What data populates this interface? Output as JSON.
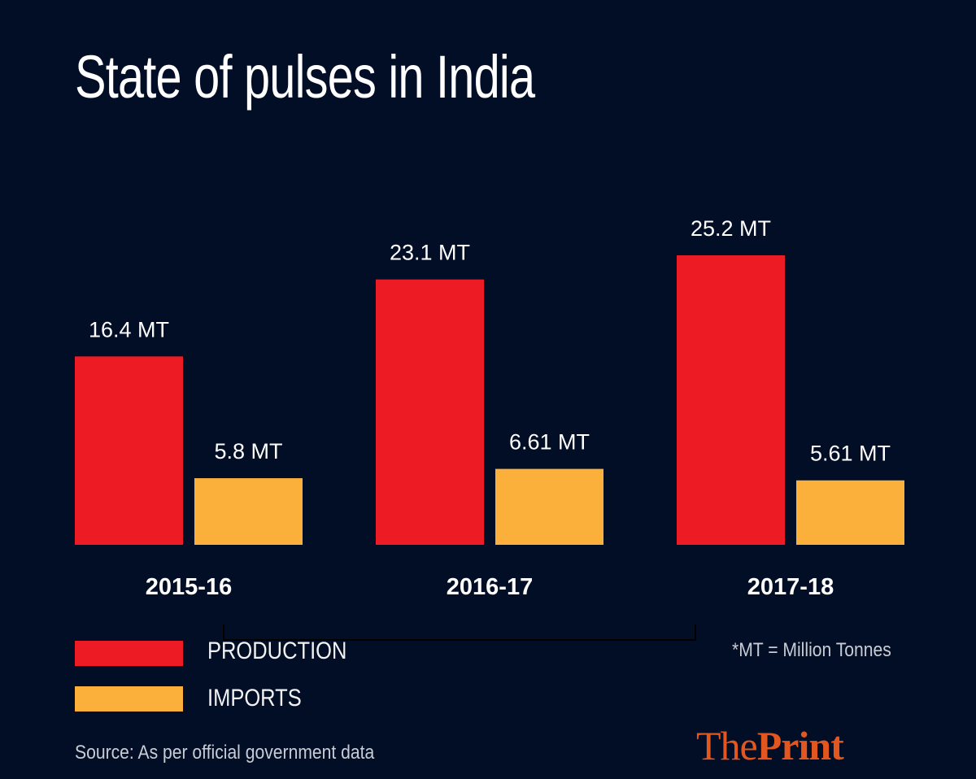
{
  "chart_data": {
    "type": "bar",
    "title": "State of pulses in India",
    "categories": [
      "2015-16",
      "2016-17",
      "2017-18"
    ],
    "series": [
      {
        "name": "PRODUCTION",
        "values": [
          16.4,
          23.1,
          25.2
        ],
        "labels": [
          "16.4 MT",
          "23.1 MT",
          "25.2 MT"
        ],
        "color": "#ed1c24"
      },
      {
        "name": "IMPORTS",
        "values": [
          5.8,
          6.61,
          5.61
        ],
        "labels": [
          "5.8 MT",
          "6.61 MT",
          "5.61 MT"
        ],
        "color": "#fbb03b"
      }
    ],
    "ylim": [
      0,
      25.2
    ],
    "grid": false,
    "legend": "bottom-left",
    "unit_note": "*MT = Million Tonnes",
    "source": "Source: As per official government data"
  },
  "brand": {
    "logo_part1": "The",
    "logo_part2": "Print",
    "color": "#e2561f"
  },
  "background": "#020d26"
}
